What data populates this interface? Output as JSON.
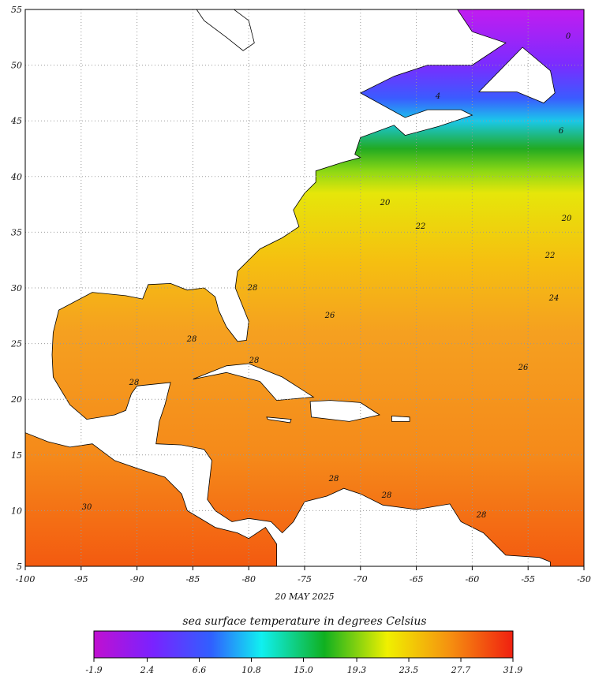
{
  "map": {
    "title": "sea surface temperature in degrees Celsius",
    "date": "20 MAY 2025",
    "xticks": [
      -100,
      -95,
      -90,
      -85,
      -80,
      -75,
      -70,
      -65,
      -60,
      -55,
      -50
    ],
    "yticks": [
      5,
      10,
      15,
      20,
      25,
      30,
      35,
      40,
      45,
      50,
      55
    ],
    "colorbar_ticks": [
      -1.9,
      2.4,
      6.6,
      10.8,
      {
        "value": 15,
        "label": "15.0"
      },
      19.3,
      23.5,
      27.7,
      31.9
    ],
    "contour_labels": [
      28,
      28,
      28,
      28,
      26,
      22,
      22,
      24,
      26,
      28,
      28,
      28,
      30,
      20,
      20,
      6,
      4,
      0
    ]
  }
}
